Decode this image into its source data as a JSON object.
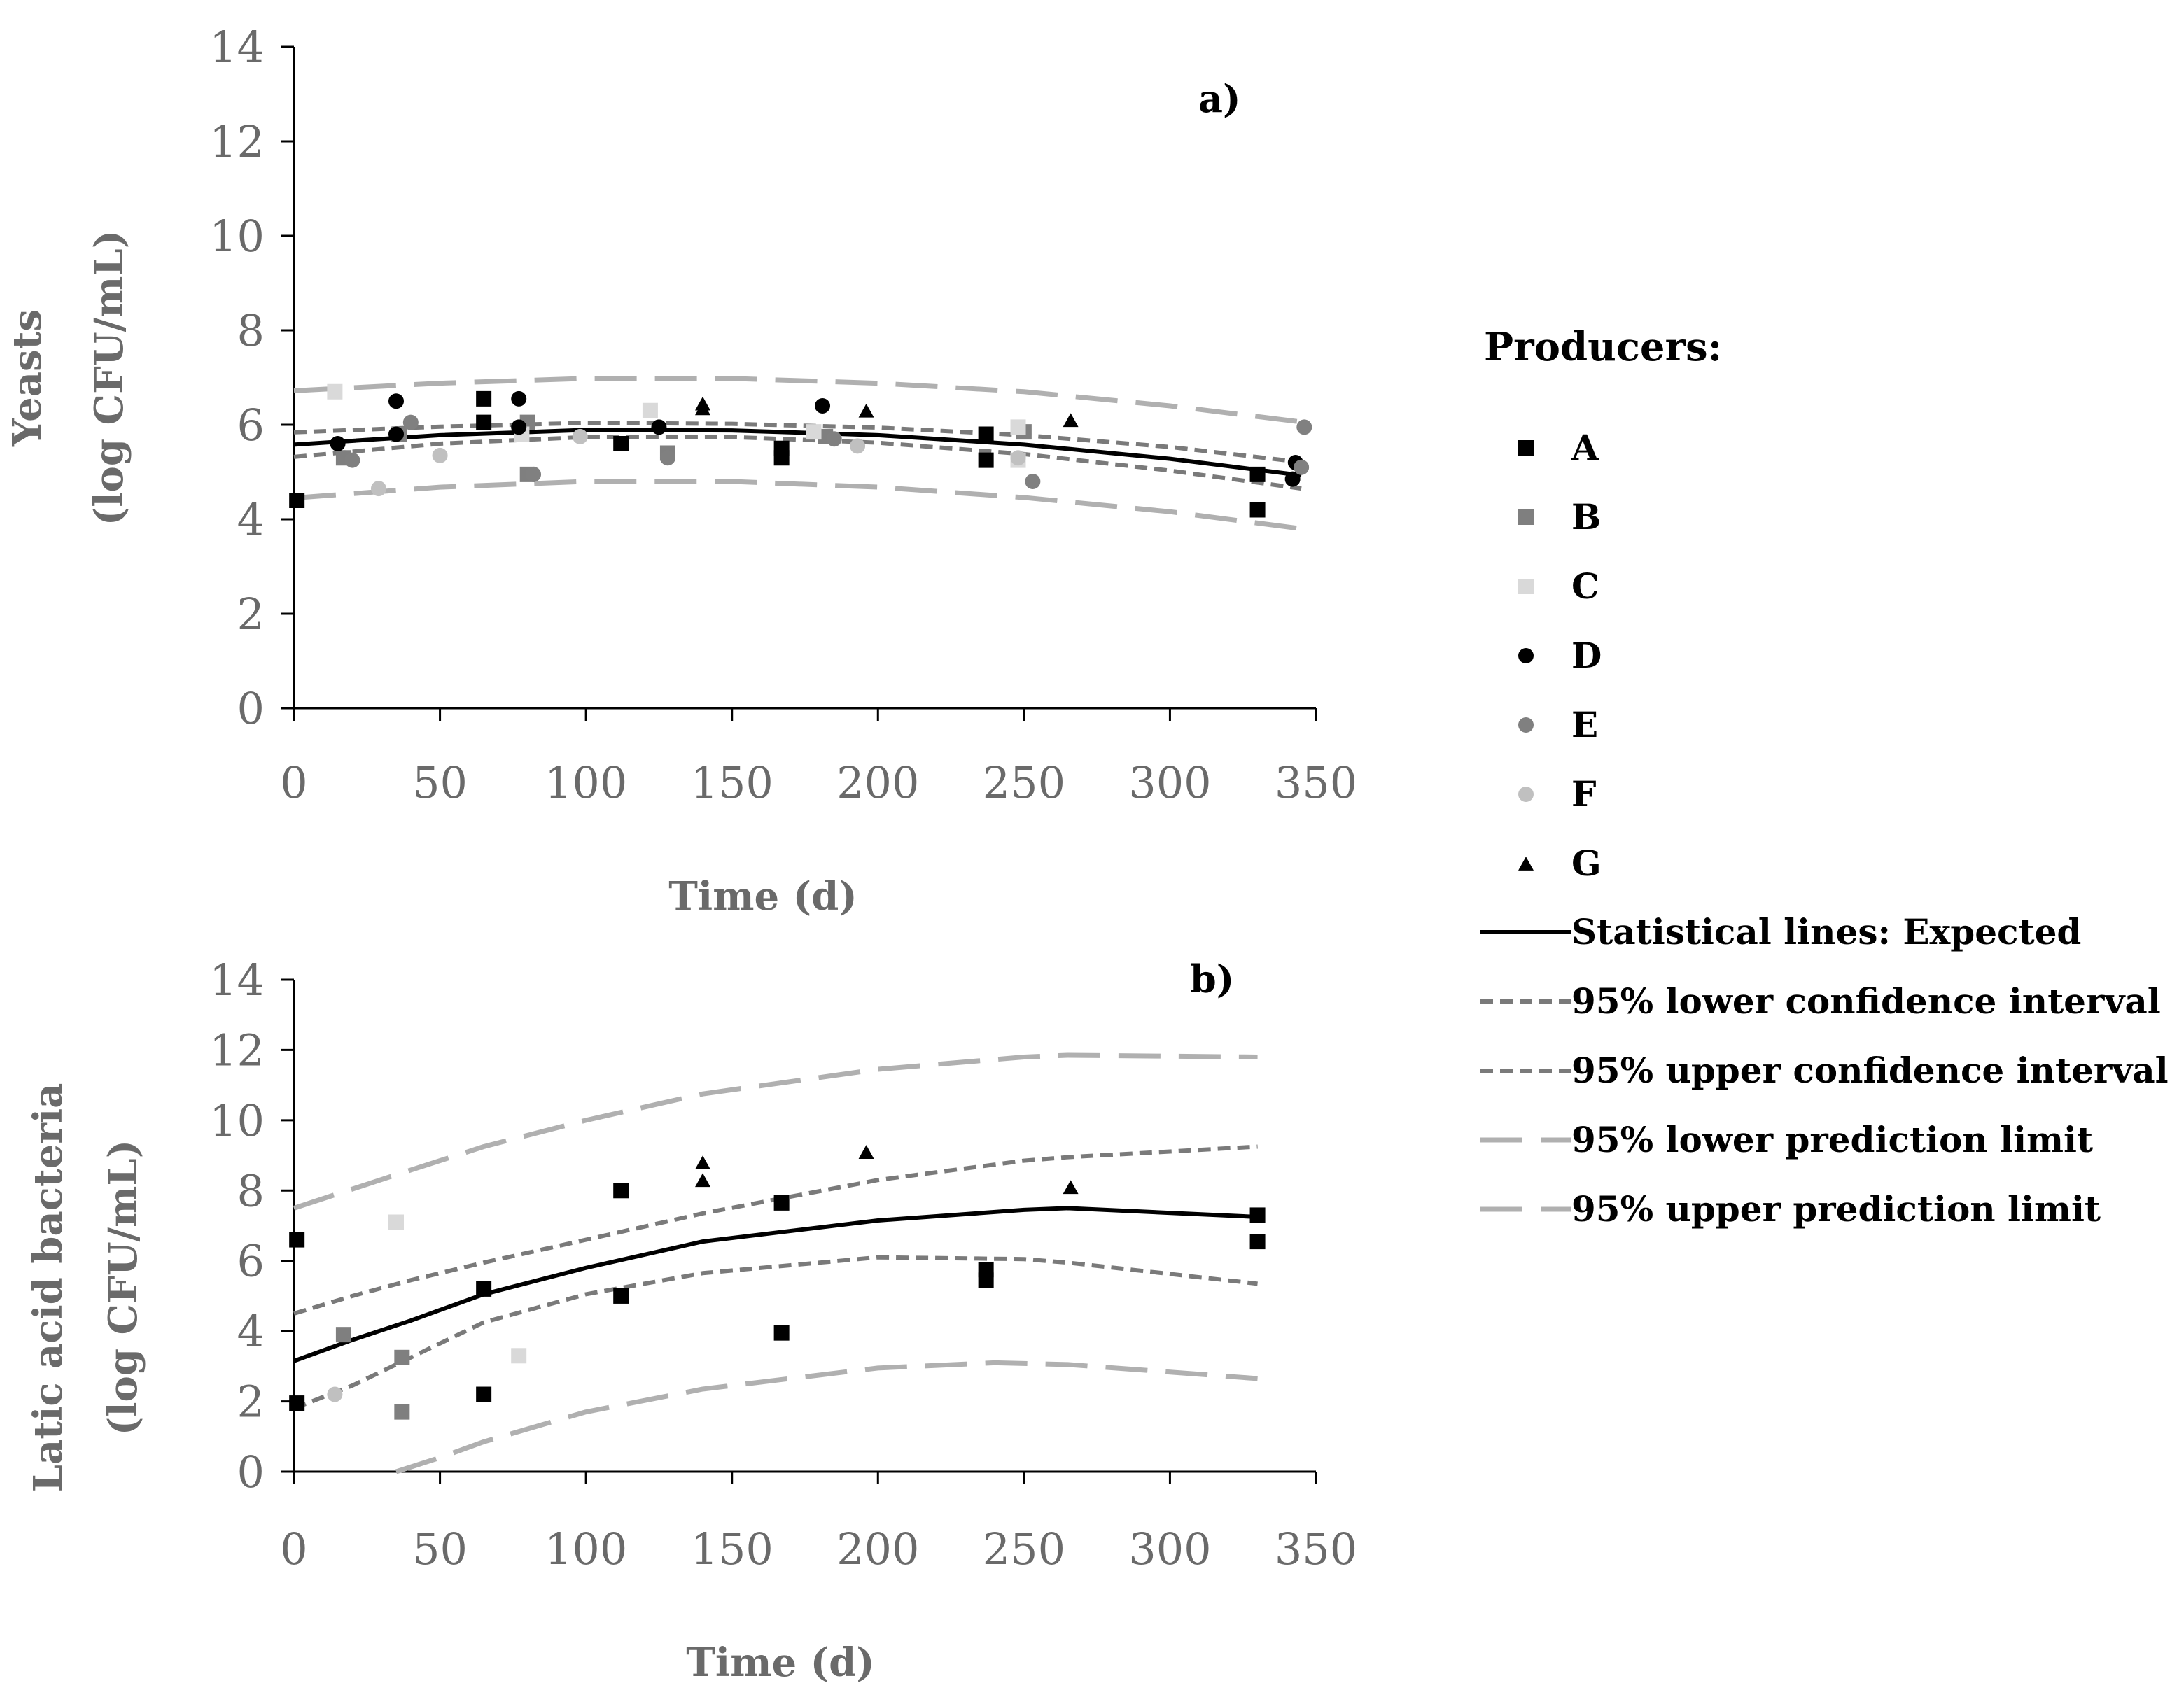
{
  "chart_data": [
    {
      "type": "scatter",
      "panel_label": "a)",
      "xlabel": "Time (d)",
      "ylabel_line1": "Yeasts",
      "ylabel_line2": "(log CFU/mL)",
      "xlim": [
        0,
        350
      ],
      "ylim": [
        0,
        14
      ],
      "xticks": [
        "0",
        "50",
        "100",
        "150",
        "200",
        "250",
        "300",
        "350"
      ],
      "yticks": [
        "0",
        "2",
        "4",
        "6",
        "8",
        "10",
        "12",
        "14"
      ],
      "series": [
        {
          "name": "A",
          "points": [
            [
              1,
              4.4
            ],
            [
              65,
              6.55
            ],
            [
              65,
              6.05
            ],
            [
              112,
              5.6
            ],
            [
              167,
              5.5
            ],
            [
              167,
              5.3
            ],
            [
              237,
              5.8
            ],
            [
              237,
              5.25
            ],
            [
              330,
              4.95
            ],
            [
              330,
              4.2
            ]
          ]
        },
        {
          "name": "B",
          "points": [
            [
              17,
              5.3
            ],
            [
              36,
              5.8
            ],
            [
              80,
              6.05
            ],
            [
              80,
              4.95
            ],
            [
              128,
              5.4
            ],
            [
              182,
              5.75
            ],
            [
              250,
              5.85
            ]
          ]
        },
        {
          "name": "C",
          "points": [
            [
              14,
              6.7
            ],
            [
              78,
              5.8
            ],
            [
              122,
              6.3
            ],
            [
              178,
              5.85
            ],
            [
              248,
              5.95
            ],
            [
              248,
              5.25
            ]
          ]
        },
        {
          "name": "D",
          "points": [
            [
              15,
              5.6
            ],
            [
              35,
              6.5
            ],
            [
              35,
              5.8
            ],
            [
              77,
              6.55
            ],
            [
              77,
              5.95
            ],
            [
              125,
              5.95
            ],
            [
              181,
              6.4
            ],
            [
              342,
              4.85
            ],
            [
              343,
              5.2
            ]
          ]
        },
        {
          "name": "E",
          "points": [
            [
              20,
              5.25
            ],
            [
              40,
              6.05
            ],
            [
              82,
              4.95
            ],
            [
              128,
              5.3
            ],
            [
              185,
              5.7
            ],
            [
              253,
              4.8
            ],
            [
              346,
              5.95
            ],
            [
              345,
              5.1
            ]
          ]
        },
        {
          "name": "F",
          "points": [
            [
              29,
              4.65
            ],
            [
              50,
              5.35
            ],
            [
              98,
              5.75
            ],
            [
              193,
              5.55
            ],
            [
              248,
              5.3
            ]
          ]
        },
        {
          "name": "G",
          "points": [
            [
              140,
              6.45
            ],
            [
              140,
              6.35
            ],
            [
              196,
              6.3
            ],
            [
              266,
              6.1
            ]
          ]
        }
      ],
      "statistical_lines": [
        {
          "name": "Statistical lines: Expected",
          "x": [
            0,
            50,
            100,
            150,
            200,
            250,
            300,
            345
          ],
          "y": [
            5.58,
            5.78,
            5.89,
            5.88,
            5.78,
            5.58,
            5.28,
            4.93
          ]
        },
        {
          "name": "95% lower confidence interval",
          "x": [
            0,
            50,
            100,
            150,
            200,
            250,
            300,
            345
          ],
          "y": [
            5.32,
            5.6,
            5.74,
            5.74,
            5.62,
            5.38,
            5.03,
            4.65
          ]
        },
        {
          "name": "95% upper confidence interval",
          "x": [
            0,
            50,
            100,
            150,
            200,
            250,
            300,
            345
          ],
          "y": [
            5.84,
            5.96,
            6.04,
            6.02,
            5.94,
            5.78,
            5.53,
            5.21
          ]
        },
        {
          "name": "95% lower prediction limit",
          "x": [
            0,
            50,
            100,
            150,
            200,
            250,
            300,
            345
          ],
          "y": [
            4.45,
            4.68,
            4.8,
            4.8,
            4.68,
            4.46,
            4.16,
            3.8
          ]
        },
        {
          "name": "95% upper prediction limit",
          "x": [
            0,
            50,
            100,
            150,
            200,
            250,
            300,
            345
          ],
          "y": [
            6.72,
            6.88,
            6.98,
            6.98,
            6.88,
            6.7,
            6.4,
            6.06
          ]
        }
      ]
    },
    {
      "type": "scatter",
      "panel_label": "b)",
      "xlabel": "Time (d)",
      "ylabel_line1": "Latic acid bacteria",
      "ylabel_line2": "(log CFU/mL)",
      "xlim": [
        0,
        350
      ],
      "ylim": [
        0,
        14
      ],
      "xticks": [
        "0",
        "50",
        "100",
        "150",
        "200",
        "250",
        "300",
        "350"
      ],
      "yticks": [
        "0",
        "2",
        "4",
        "6",
        "8",
        "10",
        "12",
        "14"
      ],
      "series": [
        {
          "name": "A",
          "points": [
            [
              1,
              6.6
            ],
            [
              1,
              1.95
            ],
            [
              65,
              5.2
            ],
            [
              65,
              2.2
            ],
            [
              112,
              8.0
            ],
            [
              112,
              5.0
            ],
            [
              167,
              7.65
            ],
            [
              167,
              3.95
            ],
            [
              237,
              5.75
            ],
            [
              237,
              5.45
            ],
            [
              330,
              7.3
            ],
            [
              330,
              6.55
            ]
          ]
        },
        {
          "name": "B",
          "points": [
            [
              17,
              3.9
            ],
            [
              37,
              3.25
            ],
            [
              37,
              1.7
            ]
          ]
        },
        {
          "name": "C",
          "points": [
            [
              35,
              7.1
            ],
            [
              77,
              3.3
            ]
          ]
        },
        {
          "name": "D",
          "points": []
        },
        {
          "name": "E",
          "points": []
        },
        {
          "name": "F",
          "points": [
            [
              14,
              2.2
            ]
          ]
        },
        {
          "name": "G",
          "points": [
            [
              140,
              8.8
            ],
            [
              140,
              8.3
            ],
            [
              196,
              9.1
            ],
            [
              266,
              8.1
            ]
          ]
        }
      ],
      "statistical_lines": [
        {
          "name": "Statistical lines: Expected",
          "x": [
            0,
            20,
            40,
            65,
            100,
            140,
            200,
            250,
            265,
            330
          ],
          "y": [
            3.15,
            3.75,
            4.3,
            5.05,
            5.8,
            6.55,
            7.15,
            7.45,
            7.5,
            7.25
          ]
        },
        {
          "name": "95% lower confidence interval",
          "x": [
            0,
            20,
            40,
            65,
            100,
            140,
            200,
            250,
            265,
            330
          ],
          "y": [
            1.8,
            2.45,
            3.25,
            4.25,
            5.05,
            5.65,
            6.1,
            6.05,
            5.95,
            5.35
          ]
        },
        {
          "name": "95% upper confidence interval",
          "x": [
            0,
            20,
            40,
            65,
            100,
            140,
            200,
            250,
            265,
            330
          ],
          "y": [
            4.5,
            5.0,
            5.45,
            5.95,
            6.6,
            7.35,
            8.3,
            8.85,
            8.95,
            9.25
          ]
        },
        {
          "name": "95% lower prediction limit",
          "x": [
            35,
            50,
            65,
            100,
            140,
            200,
            240,
            265,
            330
          ],
          "y": [
            0.0,
            0.4,
            0.85,
            1.7,
            2.35,
            2.95,
            3.1,
            3.05,
            2.65
          ]
        },
        {
          "name": "95% upper prediction limit",
          "x": [
            0,
            35,
            65,
            100,
            140,
            200,
            250,
            265,
            330
          ],
          "y": [
            7.5,
            8.45,
            9.25,
            10.0,
            10.75,
            11.45,
            11.8,
            11.85,
            11.8
          ]
        }
      ]
    }
  ],
  "legend": {
    "title": "Producers:",
    "producers": [
      {
        "label": "A",
        "marker": "square",
        "color": "#000000"
      },
      {
        "label": "B",
        "marker": "square",
        "color": "#7f7f7f"
      },
      {
        "label": "C",
        "marker": "square",
        "color": "#d9d9d9"
      },
      {
        "label": "D",
        "marker": "circle",
        "color": "#000000"
      },
      {
        "label": "E",
        "marker": "circle",
        "color": "#808080"
      },
      {
        "label": "F",
        "marker": "circle",
        "color": "#c0c0c0"
      },
      {
        "label": "G",
        "marker": "triangle",
        "color": "#000000"
      }
    ],
    "lines": [
      {
        "label": "Statistical lines: Expected",
        "style": "solid",
        "color": "#000000"
      },
      {
        "label": "95% lower confidence interval",
        "style": "short-dash",
        "color": "#7a7a7a"
      },
      {
        "label": "95% upper confidence interval",
        "style": "short-dash",
        "color": "#7a7a7a"
      },
      {
        "label": "95% lower prediction limit",
        "style": "long-dash",
        "color": "#b0b0b0"
      },
      {
        "label": "95% upper prediction limit",
        "style": "long-dash",
        "color": "#b0b0b0"
      }
    ]
  }
}
